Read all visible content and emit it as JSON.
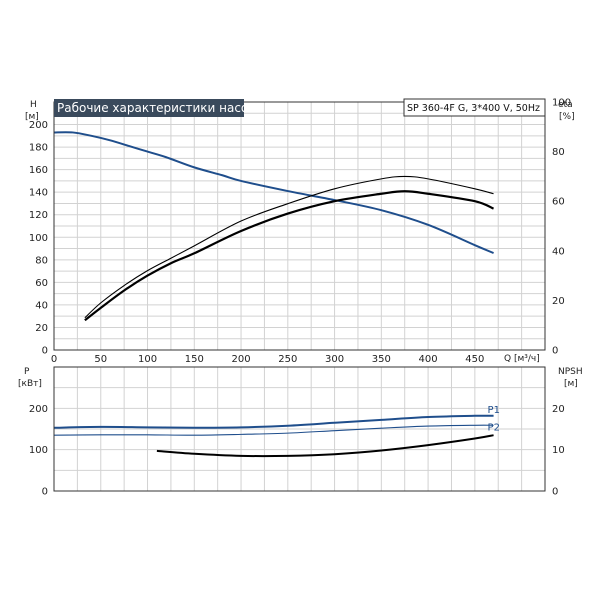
{
  "chart_data": [
    {
      "type": "line",
      "title": "Рабочие характеристики насоса",
      "subtitle": "SP 360-4F G, 3*400 V, 50Hz",
      "xlabel": "Q [м³/ч]",
      "ylabel_left": [
        "H",
        "[м]"
      ],
      "ylabel_right": [
        "eta",
        "[%]"
      ],
      "xlim": [
        0,
        525
      ],
      "ylim_left": [
        0,
        220
      ],
      "ylim_right": [
        0,
        100
      ],
      "xticks": [
        0,
        50,
        100,
        150,
        200,
        250,
        300,
        350,
        400,
        450
      ],
      "yticks_left": [
        0,
        20,
        40,
        60,
        80,
        100,
        120,
        140,
        160,
        180,
        200
      ],
      "yticks_right": [
        0,
        20,
        40,
        60,
        80,
        100
      ],
      "grid": true,
      "series": [
        {
          "name": "H",
          "axis": "left",
          "color": "#1f4e8c",
          "x": [
            0,
            20,
            40,
            60,
            80,
            100,
            120,
            150,
            180,
            200,
            250,
            300,
            350,
            400,
            450,
            470
          ],
          "y": [
            193,
            193,
            190,
            186,
            181,
            176,
            171,
            162,
            155,
            150,
            141,
            133,
            124,
            111,
            93,
            86
          ]
        },
        {
          "axis": "right",
          "color": "#000000",
          "x": [
            33,
            50,
            75,
            100,
            125,
            150,
            200,
            250,
            300,
            350,
            375,
            400,
            450,
            470
          ],
          "y": [
            13,
            19,
            26,
            32,
            37,
            42,
            52,
            59,
            65,
            69,
            70,
            69,
            65,
            63
          ]
        },
        {
          "axis": "right",
          "color": "#000000",
          "x": [
            33,
            50,
            75,
            100,
            125,
            150,
            200,
            250,
            300,
            350,
            375,
            400,
            450,
            470
          ],
          "y": [
            12,
            17,
            24,
            30,
            35,
            39,
            48,
            55,
            60,
            63,
            64,
            63,
            60,
            57
          ]
        }
      ]
    },
    {
      "type": "line",
      "ylabel_left": [
        "P",
        "[кВт]"
      ],
      "ylabel_right": [
        "NPSH",
        "[м]"
      ],
      "xlim": [
        0,
        525
      ],
      "ylim_left": [
        0,
        300
      ],
      "ylim_right": [
        0,
        30
      ],
      "yticks_left": [
        0,
        100,
        200
      ],
      "yticks_right": [
        0,
        10,
        20
      ],
      "grid": true,
      "series": [
        {
          "name": "P1",
          "axis": "left",
          "color": "#1f4e8c",
          "x": [
            0,
            50,
            100,
            150,
            200,
            250,
            300,
            350,
            400,
            450,
            470
          ],
          "y": [
            153,
            155,
            154,
            153,
            154,
            158,
            165,
            172,
            179,
            182,
            182
          ]
        },
        {
          "name": "P2",
          "axis": "left",
          "color": "#1f4e8c",
          "x": [
            0,
            50,
            100,
            150,
            200,
            250,
            300,
            350,
            400,
            450,
            470
          ],
          "y": [
            135,
            136,
            136,
            135,
            137,
            140,
            146,
            152,
            157,
            159,
            159
          ]
        },
        {
          "axis": "right",
          "color": "#000000",
          "x": [
            110,
            150,
            200,
            250,
            300,
            350,
            400,
            450,
            470
          ],
          "y": [
            9.7,
            9.0,
            8.5,
            8.5,
            8.9,
            9.8,
            11.1,
            12.7,
            13.5
          ]
        }
      ]
    }
  ]
}
